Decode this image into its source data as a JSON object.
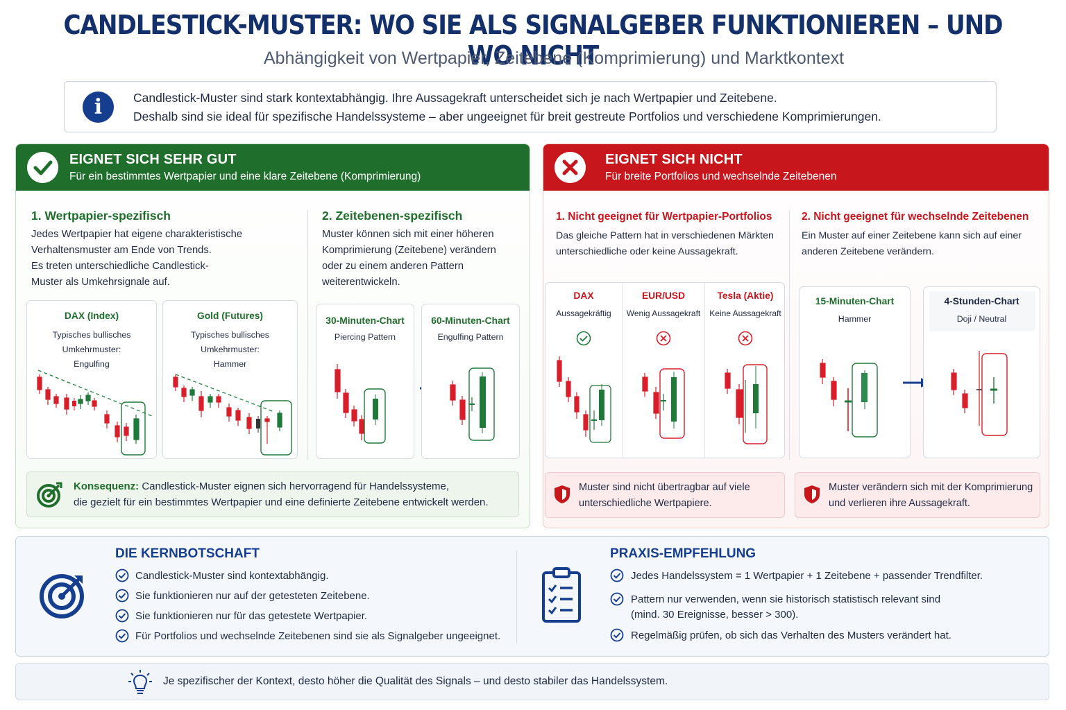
{
  "header": {
    "title": "CANDLESTICK-MUSTER: WO SIE ALS SIGNALGEBER FUNKTIONIEREN – UND WO NICHT",
    "subtitle": "Abhängigkeit von Wertpapier, Zeitebene (Komprimierung) und Marktkontext"
  },
  "info": {
    "icon": "info-icon",
    "line1": "Candlestick-Muster sind stark kontextabhängig. Ihre Aussagekraft unterscheidet sich je nach Wertpapier und Zeitebene.",
    "line2": "Deshalb sind sie ideal für spezifische Handelssysteme – aber ungeeignet für breit gestreute Portfolios und verschiedene Komprimierungen."
  },
  "good": {
    "heading": "EIGNET SICH SEHR GUT",
    "subheading": "Für ein bestimmtes Wertpapier und eine klare Zeitebene (Komprimierung)",
    "accent": "#1f6e2c",
    "s1": {
      "title": "1. Wertpapier-spezifisch",
      "l1": "Jedes Wertpapier hat eigene charakteristische",
      "l2": "Verhaltensmuster am Ende von Trends.",
      "l3": "Es treten unterschiedliche Candlestick-",
      "l4": "Muster als Umkehrsignale auf."
    },
    "s2": {
      "title": "2. Zeitebenen-spezifisch",
      "l1": "Muster können sich mit einer höheren",
      "l2": "Komprimierung (Zeitebene) verändern",
      "l3": "oder zu einem anderen Pattern",
      "l4": "weiterentwickeln."
    },
    "cards": [
      {
        "title": "DAX (Index)",
        "l1": "Typisches bullisches",
        "l2": "Umkehrmuster:",
        "l3": "Engulfing"
      },
      {
        "title": "Gold (Futures)",
        "l1": "Typisches bullisches",
        "l2": "Umkehrmuster:",
        "l3": "Hammer"
      },
      {
        "title": "30-Minuten-Chart",
        "l1": "Piercing Pattern"
      },
      {
        "title": "60-Minuten-Chart",
        "l1": "Engulfing Pattern"
      }
    ],
    "consequence": {
      "label": "Konsequenz:",
      "l1": " Candlestick-Muster eignen sich hervorragend für Handelssysteme,",
      "l2": "die gezielt für ein bestimmtes Wertpapier und eine definierte Zeitebene entwickelt werden."
    }
  },
  "bad": {
    "heading": "EIGNET SICH NICHT",
    "subheading": "Für breite Portfolios und wechselnde Zeitebenen",
    "accent": "#c8161d",
    "s1": {
      "title": "1. Nicht geeignet für Wertpapier-Portfolios",
      "l1": "Das gleiche Pattern hat in verschiedenen Märkten",
      "l2": "unterschiedliche oder keine Aussagekraft."
    },
    "s2": {
      "title": "2. Nicht geeignet für wechselnde Zeitebenen",
      "l1": "Ein Muster auf einer Zeitebene kann sich auf einer",
      "l2": "anderen Zeitebene verändern."
    },
    "markets": [
      {
        "title": "DAX",
        "sub": "Aussagekräftig"
      },
      {
        "title": "EUR/USD",
        "sub": "Wenig Aussagekraft"
      },
      {
        "title": "Tesla (Aktie)",
        "sub": "Keine Aussagekraft"
      }
    ],
    "timeframes": [
      {
        "title": "15-Minuten-Chart",
        "sub": "Hammer"
      },
      {
        "title": "4-Stunden-Chart",
        "sub": "Doji / Neutral"
      }
    ],
    "warn1": {
      "l1": "Muster sind nicht übertragbar auf viele",
      "l2": "unterschiedliche Wertpapiere."
    },
    "warn2": {
      "l1": "Muster verändern sich mit der Komprimierung",
      "l2": "und verlieren ihre Aussagekraft."
    }
  },
  "core": {
    "title": "DIE KERNBOTSCHAFT",
    "items": [
      "Candlestick-Muster sind kontextabhängig.",
      "Sie funktionieren nur auf der getesteten Zeitebene.",
      "Sie funktionieren nur für das getestete Wertpapier.",
      "Für Portfolios und wechselnde Zeitebenen sind sie als Signalgeber ungeeignet."
    ]
  },
  "practice": {
    "title": "PRAXIS-EMPFEHLUNG",
    "item1": "Jedes Handelssystem = 1 Wertpapier + 1 Zeitebene + passender Trendfilter.",
    "item2a": "Pattern nur verwenden, wenn sie historisch statistisch relevant sind",
    "item2b": "(mind. 30 Ereignisse, besser > 300).",
    "item3": "Regelmäßig prüfen, ob sich das Verhalten des Musters verändert hat."
  },
  "footer": {
    "text": "Je spezifischer der Kontext, desto höher die Qualität des Signals – und desto stabiler das Handelssystem."
  },
  "colors": {
    "navy": "#14306b",
    "green": "#1f6e2c",
    "red": "#c8161d",
    "candle_red": "#d81e2a",
    "candle_green": "#1f7a3a"
  }
}
